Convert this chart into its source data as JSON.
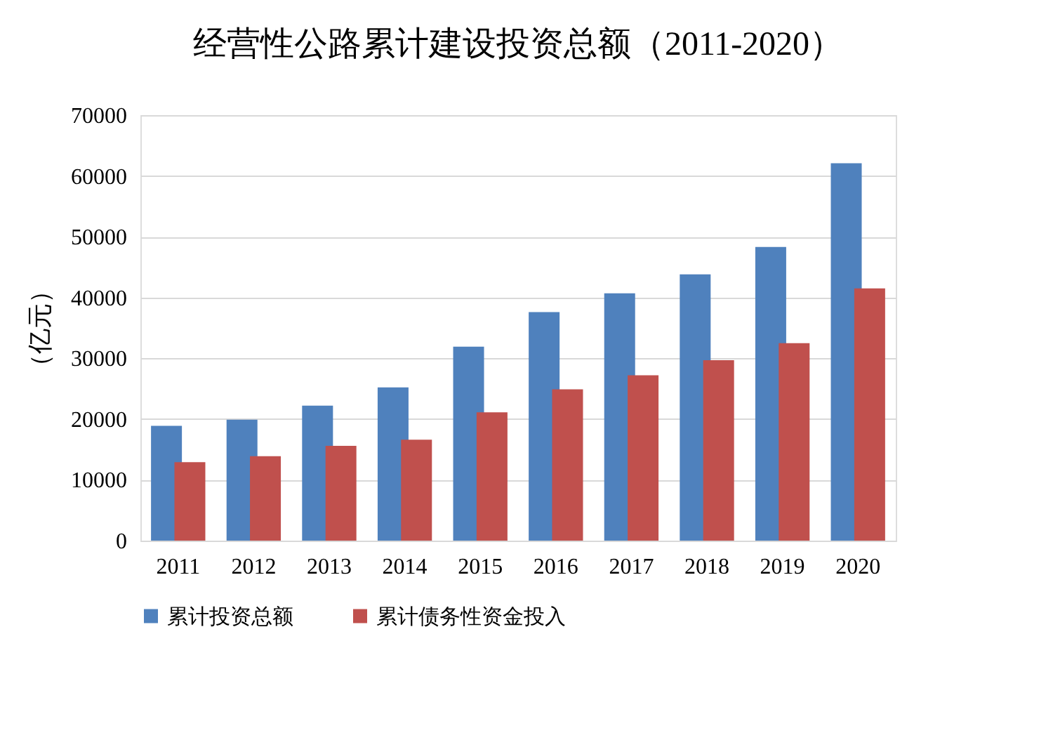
{
  "chart_data": {
    "type": "bar",
    "title": "经营性公路累计建设投资总额（2011-2020）",
    "ylabel": "（亿元）",
    "categories": [
      "2011",
      "2012",
      "2013",
      "2014",
      "2015",
      "2016",
      "2017",
      "2018",
      "2019",
      "2020"
    ],
    "series": [
      {
        "name": "累计投资总额",
        "color": "#4f81bd",
        "values": [
          18900,
          19900,
          22200,
          25200,
          31900,
          37600,
          40700,
          43800,
          48300,
          62100
        ]
      },
      {
        "name": "累计债务性资金投入",
        "color": "#c0504d",
        "values": [
          12900,
          13900,
          15600,
          16600,
          21100,
          24900,
          27200,
          29700,
          32500,
          41500
        ]
      }
    ],
    "ylim": [
      0,
      70000
    ],
    "yticks": [
      0,
      10000,
      20000,
      30000,
      40000,
      50000,
      60000,
      70000
    ],
    "grid": "y",
    "legend": "bottom"
  }
}
